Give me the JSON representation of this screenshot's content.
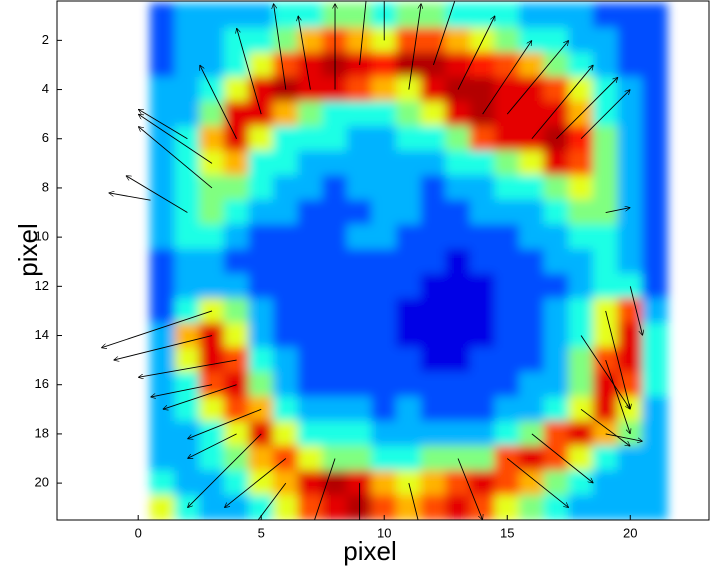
{
  "chart_data": {
    "type": "heatmap",
    "colormap": "jet",
    "xlabel": "pixel",
    "ylabel": "pixel",
    "xlim": [
      -3.3,
      23.2
    ],
    "ylim": [
      21.5,
      0.4
    ],
    "xticks": [
      0,
      5,
      10,
      15,
      20
    ],
    "yticks": [
      2,
      4,
      6,
      8,
      10,
      12,
      14,
      16,
      18,
      20
    ],
    "x": [
      1,
      2,
      3,
      4,
      5,
      6,
      7,
      8,
      9,
      10,
      11,
      12,
      13,
      14,
      15,
      16,
      17,
      18,
      19,
      20,
      21
    ],
    "y": [
      1,
      2,
      3,
      4,
      5,
      6,
      7,
      8,
      9,
      10,
      11,
      12,
      13,
      14,
      15,
      16,
      17,
      18,
      19,
      20,
      21
    ],
    "z": [
      [
        0.2,
        0.3,
        0.3,
        0.3,
        0.3,
        0.4,
        0.4,
        0.5,
        0.5,
        0.4,
        0.5,
        0.5,
        0.4,
        0.4,
        0.4,
        0.3,
        0.3,
        0.3,
        0.2,
        0.2,
        0.2
      ],
      [
        0.2,
        0.3,
        0.3,
        0.4,
        0.4,
        0.5,
        0.7,
        0.8,
        0.7,
        0.6,
        0.8,
        0.8,
        0.7,
        0.6,
        0.5,
        0.4,
        0.4,
        0.3,
        0.3,
        0.2,
        0.2
      ],
      [
        0.2,
        0.3,
        0.3,
        0.4,
        0.6,
        0.8,
        0.9,
        0.95,
        0.9,
        0.85,
        0.95,
        0.95,
        0.9,
        0.85,
        0.8,
        0.7,
        0.5,
        0.4,
        0.3,
        0.2,
        0.2
      ],
      [
        0.3,
        0.3,
        0.4,
        0.6,
        0.9,
        0.95,
        0.9,
        0.9,
        0.8,
        0.7,
        0.6,
        0.9,
        0.95,
        0.95,
        0.9,
        0.9,
        0.8,
        0.6,
        0.4,
        0.3,
        0.2
      ],
      [
        0.3,
        0.3,
        0.5,
        0.9,
        0.9,
        0.7,
        0.5,
        0.4,
        0.4,
        0.4,
        0.5,
        0.6,
        0.9,
        0.95,
        0.9,
        0.9,
        0.9,
        0.7,
        0.4,
        0.3,
        0.2
      ],
      [
        0.3,
        0.4,
        0.7,
        0.9,
        0.6,
        0.4,
        0.4,
        0.4,
        0.3,
        0.3,
        0.4,
        0.4,
        0.5,
        0.8,
        0.9,
        0.9,
        0.95,
        0.85,
        0.5,
        0.3,
        0.2
      ],
      [
        0.3,
        0.4,
        0.6,
        0.7,
        0.4,
        0.4,
        0.3,
        0.3,
        0.3,
        0.3,
        0.3,
        0.3,
        0.4,
        0.4,
        0.5,
        0.6,
        0.9,
        0.8,
        0.5,
        0.3,
        0.2
      ],
      [
        0.3,
        0.4,
        0.5,
        0.5,
        0.4,
        0.3,
        0.3,
        0.2,
        0.3,
        0.3,
        0.3,
        0.2,
        0.3,
        0.3,
        0.4,
        0.4,
        0.5,
        0.6,
        0.5,
        0.3,
        0.2
      ],
      [
        0.3,
        0.4,
        0.5,
        0.4,
        0.3,
        0.3,
        0.2,
        0.2,
        0.2,
        0.3,
        0.3,
        0.2,
        0.2,
        0.3,
        0.3,
        0.3,
        0.4,
        0.5,
        0.5,
        0.3,
        0.2
      ],
      [
        0.3,
        0.4,
        0.4,
        0.3,
        0.2,
        0.2,
        0.2,
        0.2,
        0.3,
        0.3,
        0.2,
        0.2,
        0.2,
        0.2,
        0.2,
        0.3,
        0.3,
        0.4,
        0.4,
        0.3,
        0.2
      ],
      [
        0.2,
        0.3,
        0.3,
        0.2,
        0.2,
        0.2,
        0.2,
        0.2,
        0.2,
        0.2,
        0.2,
        0.2,
        0.1,
        0.2,
        0.2,
        0.2,
        0.3,
        0.3,
        0.4,
        0.3,
        0.2
      ],
      [
        0.2,
        0.3,
        0.3,
        0.3,
        0.2,
        0.2,
        0.2,
        0.2,
        0.2,
        0.2,
        0.2,
        0.1,
        0.1,
        0.1,
        0.2,
        0.2,
        0.2,
        0.3,
        0.4,
        0.4,
        0.2
      ],
      [
        0.2,
        0.4,
        0.6,
        0.5,
        0.3,
        0.2,
        0.2,
        0.2,
        0.2,
        0.2,
        0.1,
        0.1,
        0.1,
        0.1,
        0.2,
        0.2,
        0.3,
        0.4,
        0.6,
        0.8,
        0.3
      ],
      [
        0.3,
        0.7,
        0.9,
        0.6,
        0.3,
        0.2,
        0.2,
        0.2,
        0.2,
        0.2,
        0.1,
        0.1,
        0.1,
        0.1,
        0.2,
        0.2,
        0.3,
        0.4,
        0.6,
        0.9,
        0.4
      ],
      [
        0.3,
        0.6,
        0.9,
        0.8,
        0.4,
        0.3,
        0.2,
        0.2,
        0.2,
        0.2,
        0.2,
        0.1,
        0.1,
        0.2,
        0.2,
        0.2,
        0.3,
        0.5,
        0.8,
        0.9,
        0.4
      ],
      [
        0.3,
        0.4,
        0.8,
        0.9,
        0.5,
        0.3,
        0.2,
        0.2,
        0.2,
        0.2,
        0.2,
        0.2,
        0.2,
        0.2,
        0.2,
        0.3,
        0.3,
        0.5,
        0.9,
        0.8,
        0.4
      ],
      [
        0.3,
        0.4,
        0.6,
        0.8,
        0.7,
        0.4,
        0.3,
        0.3,
        0.3,
        0.2,
        0.3,
        0.2,
        0.2,
        0.2,
        0.3,
        0.3,
        0.4,
        0.6,
        0.9,
        0.6,
        0.3
      ],
      [
        0.3,
        0.3,
        0.4,
        0.6,
        0.9,
        0.6,
        0.4,
        0.4,
        0.4,
        0.3,
        0.3,
        0.3,
        0.3,
        0.3,
        0.4,
        0.5,
        0.8,
        0.9,
        0.7,
        0.5,
        0.3
      ],
      [
        0.3,
        0.3,
        0.4,
        0.5,
        0.7,
        0.8,
        0.6,
        0.5,
        0.5,
        0.4,
        0.4,
        0.5,
        0.5,
        0.5,
        0.8,
        0.9,
        0.8,
        0.6,
        0.4,
        0.3,
        0.3
      ],
      [
        0.4,
        0.3,
        0.3,
        0.4,
        0.6,
        0.7,
        0.9,
        0.95,
        0.9,
        0.7,
        0.6,
        0.7,
        0.8,
        0.9,
        0.8,
        0.7,
        0.5,
        0.4,
        0.3,
        0.3,
        0.3
      ],
      [
        0.6,
        0.4,
        0.3,
        0.3,
        0.4,
        0.6,
        0.8,
        0.9,
        0.95,
        0.8,
        0.7,
        0.8,
        0.9,
        0.8,
        0.6,
        0.5,
        0.4,
        0.3,
        0.3,
        0.3,
        0.3
      ]
    ],
    "arrows": {
      "color": "#000000",
      "x": [
        4,
        5,
        6,
        7,
        8,
        9,
        10,
        11,
        12,
        13,
        14,
        15,
        16,
        17,
        18,
        19,
        2,
        3,
        3,
        2,
        0.5,
        3,
        3,
        4,
        3,
        4,
        5,
        4,
        5,
        6,
        6,
        8,
        9,
        11,
        13,
        15,
        16,
        19,
        18,
        19,
        20,
        19,
        18
      ],
      "y": [
        6,
        5,
        4,
        4,
        4,
        3,
        2,
        4,
        3,
        4,
        5,
        5,
        6,
        6,
        6,
        9,
        9,
        8,
        7,
        6,
        8.5,
        13,
        14,
        15,
        16,
        16,
        17,
        18,
        18,
        19,
        20,
        19,
        20,
        20,
        19,
        19,
        18,
        15,
        14,
        13,
        12,
        18,
        17
      ],
      "u": [
        -1.5,
        -1,
        -0.5,
        -0.5,
        0,
        0.3,
        0,
        0.5,
        1,
        1.5,
        2,
        2.5,
        2.5,
        2.5,
        2,
        1,
        -2.5,
        -3,
        -3,
        -2,
        -1.7,
        -4.5,
        -4,
        -4,
        -2.5,
        -3,
        -3,
        -2,
        -3,
        -2.5,
        -1.5,
        -1,
        0,
        0.5,
        1,
        2.5,
        2.5,
        1,
        2,
        1,
        0.5,
        1.5,
        2
      ],
      "v": [
        -3,
        -3.5,
        -3.5,
        -3,
        -3.5,
        -3,
        -2.5,
        -3.5,
        -3,
        -3,
        -3,
        -3,
        -3,
        -2.5,
        -2,
        -0.2,
        -1.5,
        -2.5,
        -2,
        -1.2,
        -0.3,
        1.5,
        1,
        0.7,
        0.5,
        1,
        1.2,
        1,
        3,
        2,
        2,
        3,
        2,
        2,
        2.5,
        2,
        2,
        3,
        3,
        4,
        2,
        0.3,
        1.5
      ]
    }
  }
}
